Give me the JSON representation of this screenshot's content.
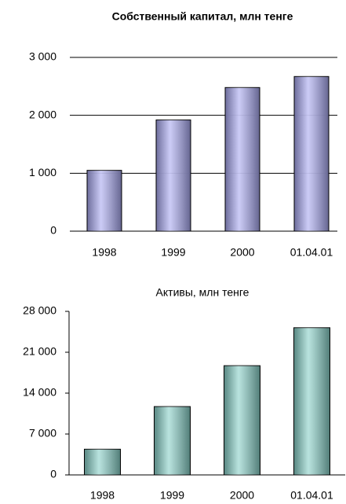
{
  "chart_data": [
    {
      "type": "bar",
      "title": "Собственный капитал, млн тенге",
      "categories": [
        "1998",
        "1999",
        "2000",
        "01.04.01"
      ],
      "values": [
        1050,
        1920,
        2480,
        2670
      ],
      "color": "#a8a8f0",
      "ylim": [
        0,
        3000
      ],
      "yticks": [
        0,
        {
          "value": 1000,
          "label": "1 000"
        },
        {
          "value": 2000,
          "label": "2 000"
        },
        {
          "value": 3000,
          "label": "3 000"
        }
      ],
      "grid": true
    },
    {
      "type": "bar",
      "title": "Активы, млн тенге",
      "categories": [
        "1998",
        "1999",
        "2000",
        "01.04.01"
      ],
      "values": [
        4400,
        11700,
        18700,
        25200
      ],
      "color": "#88d0c8",
      "ylim": [
        0,
        28000
      ],
      "yticks": [
        0,
        {
          "value": 7000,
          "label": "7 000"
        },
        {
          "value": 14000,
          "label": "14 000"
        },
        {
          "value": 21000,
          "label": "21 000"
        },
        {
          "value": 28000,
          "label": "28 000"
        }
      ],
      "grid": false
    }
  ]
}
